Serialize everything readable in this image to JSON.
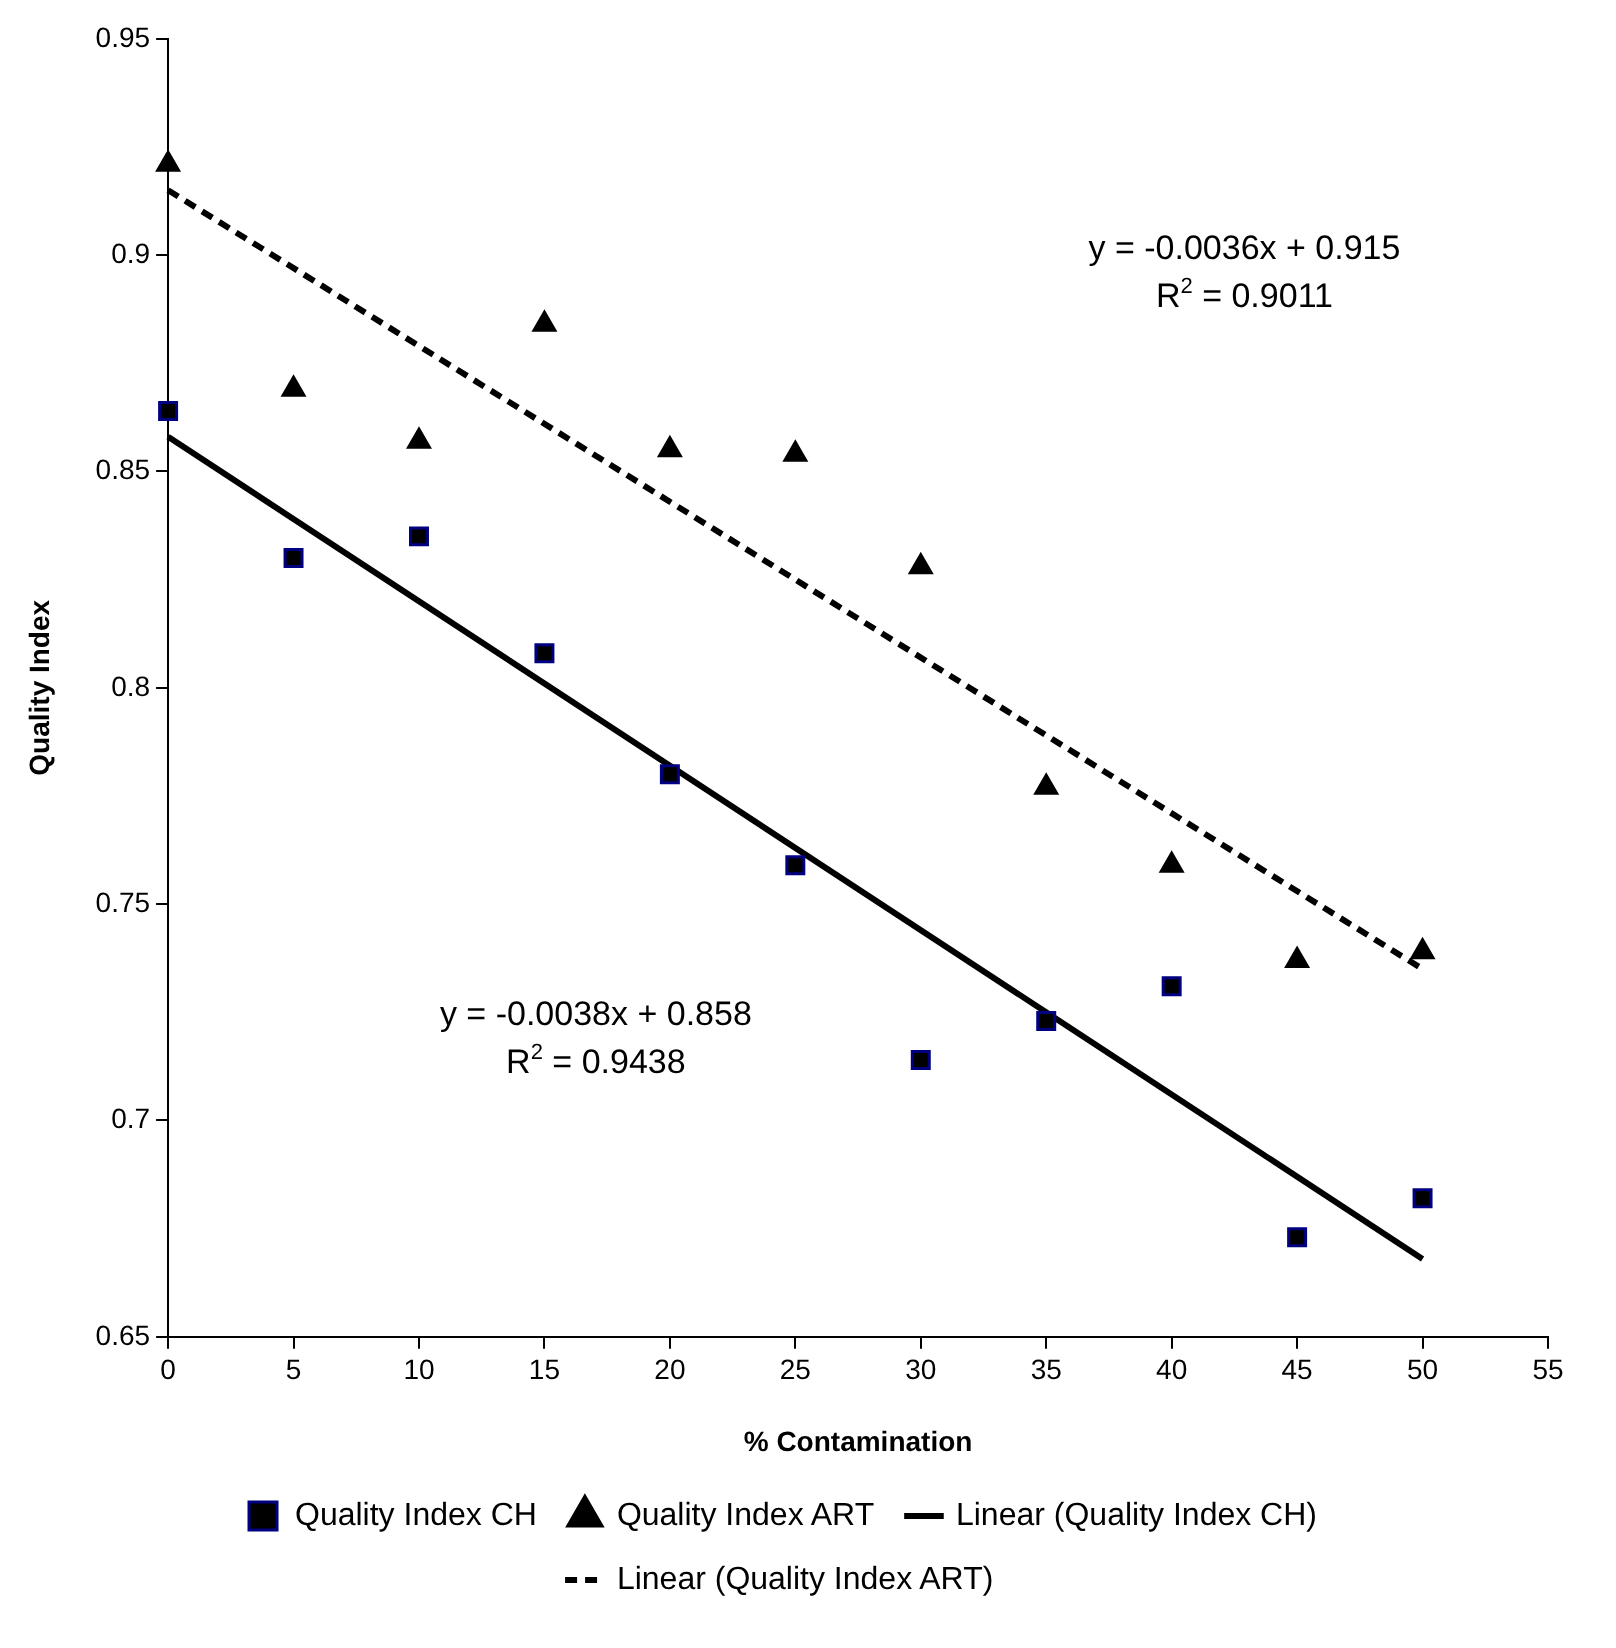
{
  "chart_data": {
    "type": "scatter",
    "xlabel": "% Contamination",
    "ylabel": "Quality Index",
    "xlim": [
      0,
      55
    ],
    "xticks": [
      0,
      5,
      10,
      15,
      20,
      25,
      30,
      35,
      40,
      45,
      50,
      55
    ],
    "ylim": [
      0.65,
      0.95
    ],
    "yticks": [
      0.65,
      0.7,
      0.75,
      0.8,
      0.85,
      0.9,
      0.95
    ],
    "grid": false,
    "legend": "bottom",
    "annotations": [
      "y = -0.0036x + 0.915\nR$^{2}$ = 0.9011",
      "y = -0.0038x + 0.858\nR$^{2}$ = 0.9438"
    ],
    "series": [
      {
        "name": "Quality Index CH",
        "type": "scatter",
        "marker": "square",
        "color": "#000080",
        "x": [
          0,
          5,
          10,
          15,
          20,
          25,
          30,
          35,
          40,
          45,
          50
        ],
        "values": [
          0.864,
          0.83,
          0.835,
          0.808,
          0.78,
          0.759,
          0.714,
          0.723,
          0.731,
          0.673,
          0.682
        ]
      },
      {
        "name": "Quality Index ART",
        "type": "scatter",
        "marker": "triangle",
        "color": "#000000",
        "x": [
          0,
          5,
          10,
          15,
          20,
          25,
          30,
          35,
          40,
          45,
          50
        ],
        "values": [
          0.921,
          0.869,
          0.857,
          0.884,
          0.855,
          0.854,
          0.828,
          0.777,
          0.759,
          0.737,
          0.739
        ]
      },
      {
        "name": "Linear (Quality Index CH)",
        "type": "line",
        "marker": "none",
        "line_style": "solid",
        "color": "#000000",
        "x": [
          0,
          50
        ],
        "values": [
          0.858,
          0.668
        ]
      },
      {
        "name": "Linear (Quality Index ART)",
        "type": "line",
        "marker": "none",
        "line_style": "dashed",
        "color": "#000000",
        "x": [
          0,
          50
        ],
        "values": [
          0.915,
          0.735
        ]
      }
    ]
  }
}
